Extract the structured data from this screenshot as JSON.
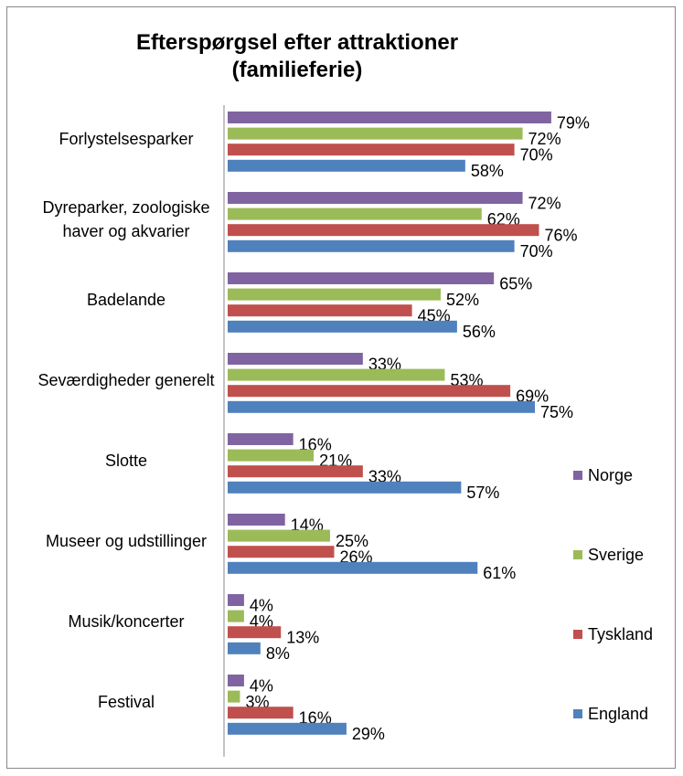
{
  "chart_data": {
    "type": "bar",
    "orientation": "horizontal",
    "title": "Efterspørgsel efter attraktioner (familieferie)",
    "categories": [
      "Forlystelsesparker",
      "Dyreparker, zoologiske haver og akvarier",
      "Badelande",
      "Seværdigheder generelt",
      "Slotte",
      "Museer og udstillinger",
      "Musik/koncerter",
      "Festival"
    ],
    "xlim": [
      0,
      100
    ],
    "legend": "right",
    "series": [
      {
        "name": "Norge",
        "color": "#8064a2",
        "values": [
          79,
          72,
          65,
          33,
          16,
          14,
          4,
          4
        ],
        "value_labels": [
          "79%",
          "72%",
          "65%",
          "33%",
          "16%",
          "14%",
          "4%",
          "4%"
        ]
      },
      {
        "name": "Sverige",
        "color": "#9bbb59",
        "values": [
          72,
          62,
          52,
          53,
          21,
          25,
          4,
          3
        ],
        "value_labels": [
          "72%",
          "62%",
          "52%",
          "53%",
          "21%",
          "25%",
          "4%",
          "3%"
        ]
      },
      {
        "name": "Tyskland",
        "color": "#c0504d",
        "values": [
          70,
          76,
          45,
          69,
          33,
          26,
          13,
          16
        ],
        "value_labels": [
          "70%",
          "76%",
          "45%",
          "69%",
          "33%",
          "26%",
          "13%",
          "16%"
        ]
      },
      {
        "name": "England",
        "color": "#4f81bd",
        "values": [
          58,
          70,
          56,
          75,
          57,
          61,
          8,
          29
        ],
        "value_labels": [
          "58%",
          "70%",
          "56%",
          "75%",
          "57%",
          "61%",
          "8%",
          "29%"
        ]
      }
    ]
  }
}
